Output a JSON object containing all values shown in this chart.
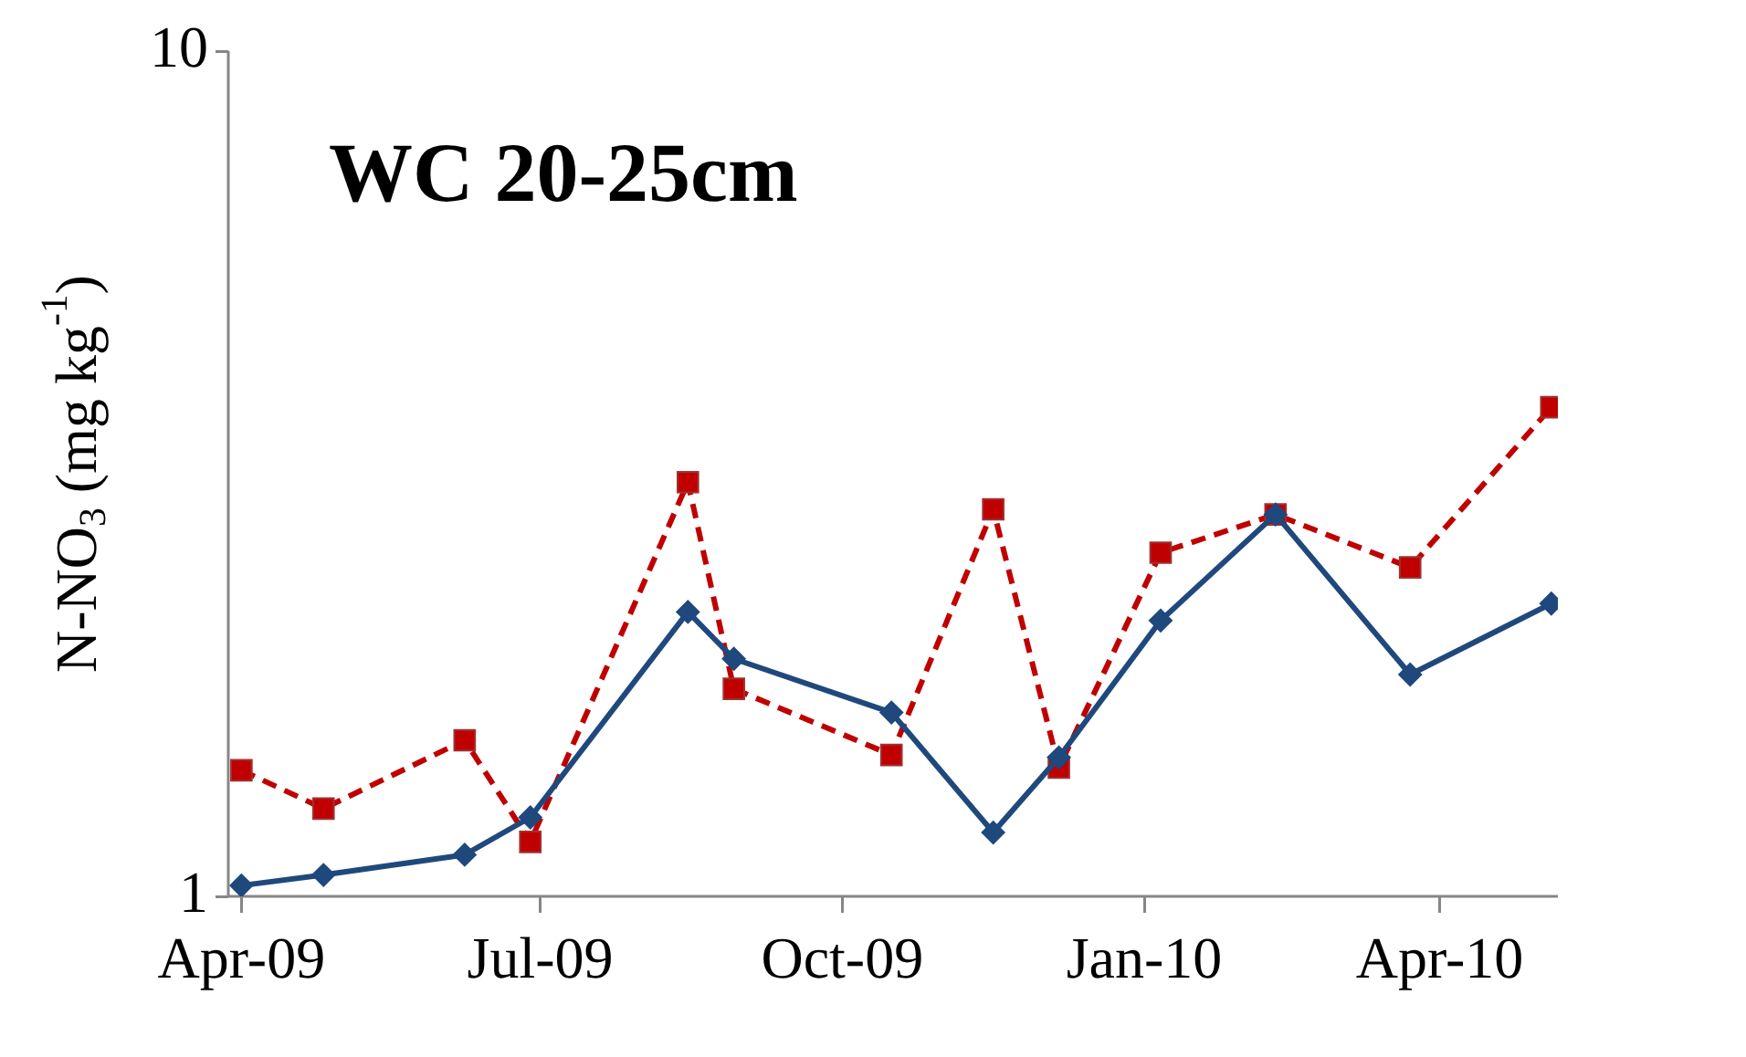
{
  "chart_data": {
    "type": "line",
    "title": "WC 20-25cm",
    "ylabel": "N-NO$_{3}$ (mg kg$^{-1}$)",
    "log": true,
    "grid": false,
    "legend": false,
    "xlim": [
      "2009-03-28",
      "2010-05-07"
    ],
    "xticks": [
      {
        "value": "2009-04-01",
        "label": "Apr-09"
      },
      {
        "value": "2009-07-01",
        "label": "Jul-09"
      },
      {
        "value": "2009-10-01",
        "label": "Oct-09"
      },
      {
        "value": "2010-01-01",
        "label": "Jan-10"
      },
      {
        "value": "2010-04-01",
        "label": "Apr-10"
      }
    ],
    "ylim": [
      1,
      10
    ],
    "yticks": [
      1,
      10
    ],
    "x": [
      "2009-04-01",
      "2009-04-26",
      "2009-06-08",
      "2009-06-28",
      "2009-08-15",
      "2009-08-29",
      "2009-10-16",
      "2009-11-16",
      "2009-12-06",
      "2010-01-06",
      "2010-02-10",
      "2010-03-23",
      "2010-05-05"
    ],
    "series": [
      {
        "color": "#1f497d",
        "marker": "diamond",
        "line_style": "solid",
        "values": [
          1.03,
          1.06,
          1.12,
          1.24,
          2.17,
          1.91,
          1.65,
          1.19,
          1.46,
          2.12,
          2.83,
          1.83,
          2.22
        ]
      },
      {
        "color": "#c00000",
        "marker": "square",
        "line_style": "dashed",
        "values": [
          1.41,
          1.27,
          1.53,
          1.16,
          3.09,
          1.76,
          1.47,
          2.87,
          1.42,
          2.55,
          2.83,
          2.45,
          3.79
        ]
      }
    ]
  }
}
